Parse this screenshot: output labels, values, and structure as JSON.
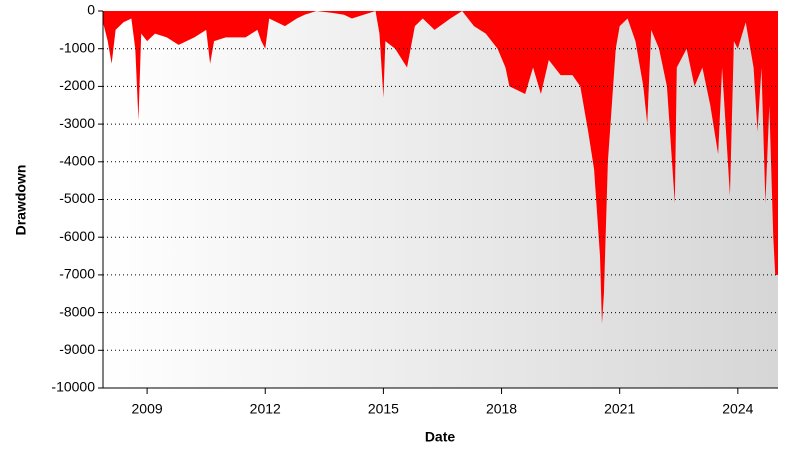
{
  "chart_data": {
    "type": "area",
    "x_label": "Date",
    "y_label": "Drawdown",
    "color": "#ff0000",
    "grid": true,
    "x": [
      2007.88,
      2008.0,
      2008.1,
      2008.2,
      2008.4,
      2008.6,
      2008.7,
      2008.78,
      2008.85,
      2009.0,
      2009.2,
      2009.5,
      2009.8,
      2010.2,
      2010.5,
      2010.6,
      2010.7,
      2011.0,
      2011.5,
      2011.8,
      2011.9,
      2012.0,
      2012.1,
      2012.5,
      2012.8,
      2013.0,
      2013.3,
      2013.7,
      2014.0,
      2014.2,
      2014.5,
      2014.8,
      2014.9,
      2015.0,
      2015.05,
      2015.3,
      2015.6,
      2015.8,
      2016.0,
      2016.3,
      2016.7,
      2017.0,
      2017.3,
      2017.6,
      2017.9,
      2018.1,
      2018.2,
      2018.4,
      2018.6,
      2018.8,
      2019.0,
      2019.2,
      2019.5,
      2019.8,
      2020.0,
      2020.2,
      2020.35,
      2020.5,
      2020.55,
      2020.6,
      2020.7,
      2020.8,
      2020.9,
      2021.0,
      2021.2,
      2021.4,
      2021.6,
      2021.7,
      2021.8,
      2022.0,
      2022.2,
      2022.4,
      2022.45,
      2022.7,
      2022.9,
      2023.1,
      2023.3,
      2023.5,
      2023.6,
      2023.8,
      2023.9,
      2024.0,
      2024.2,
      2024.4,
      2024.5,
      2024.6,
      2024.7,
      2024.8,
      2024.9,
      2024.95,
      2025.02
    ],
    "values": [
      -300,
      -800,
      -1400,
      -500,
      -300,
      -200,
      -1000,
      -2900,
      -600,
      -800,
      -600,
      -700,
      -900,
      -700,
      -500,
      -1400,
      -800,
      -700,
      -700,
      -500,
      -800,
      -1000,
      -200,
      -400,
      -200,
      -100,
      0,
      -50,
      -100,
      -200,
      -100,
      0,
      -600,
      -2300,
      -800,
      -1000,
      -1500,
      -400,
      -200,
      -500,
      -200,
      0,
      -400,
      -600,
      -1000,
      -1500,
      -2000,
      -2100,
      -2200,
      -1500,
      -2200,
      -1300,
      -1700,
      -1700,
      -2000,
      -3200,
      -4200,
      -6500,
      -8300,
      -7500,
      -4000,
      -2500,
      -1000,
      -400,
      -200,
      -800,
      -2000,
      -3000,
      -500,
      -1000,
      -2000,
      -5100,
      -1500,
      -1000,
      -2000,
      -1500,
      -2500,
      -3800,
      -1500,
      -4900,
      -800,
      -1000,
      -300,
      -1500,
      -3200,
      -1500,
      -5100,
      -2500,
      -6000,
      -7000,
      -7000
    ],
    "xlim": [
      2007.88,
      2025.02
    ],
    "xticks": [
      2009,
      2012,
      2015,
      2018,
      2021,
      2024
    ],
    "ylim": [
      -10000,
      0
    ],
    "yticks": [
      -10000,
      -9000,
      -8000,
      -7000,
      -6000,
      -5000,
      -4000,
      -3000,
      -2000,
      -1000,
      0
    ]
  }
}
